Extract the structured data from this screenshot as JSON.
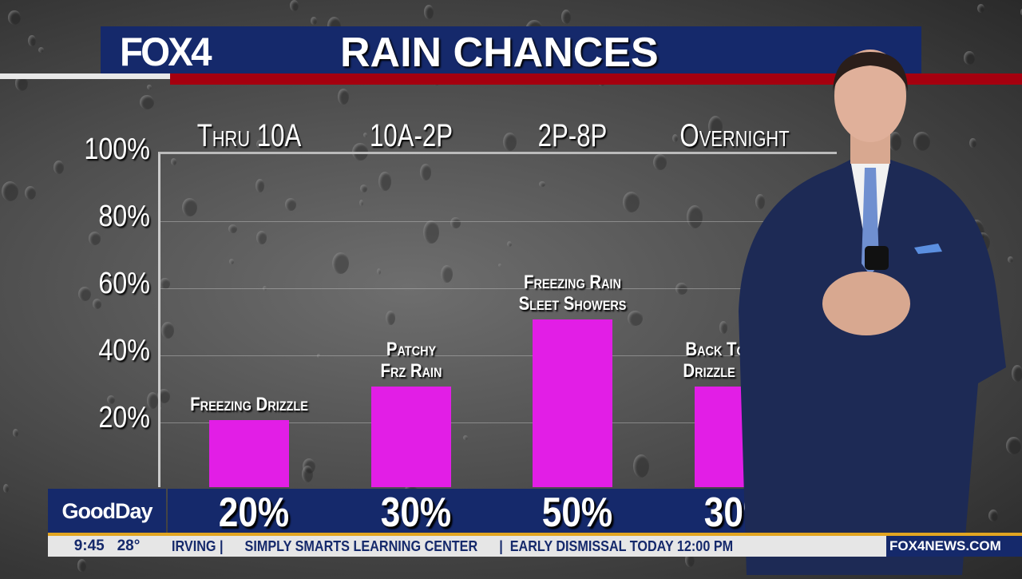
{
  "header": {
    "logo": "FOX4",
    "title": "RAIN CHANCES"
  },
  "chart_data": {
    "type": "bar",
    "title": "RAIN CHANCES",
    "categories": [
      "Thru 10A",
      "10A-2P",
      "2P-8P",
      "Overnight"
    ],
    "values": [
      20,
      30,
      50,
      30
    ],
    "value_labels": [
      "20%",
      "30%",
      "50%",
      "30%"
    ],
    "bar_labels": [
      [
        "Freezing Drizzle"
      ],
      [
        "Patchy",
        "Frz Rain"
      ],
      [
        "Freezing Rain",
        "Sleet Showers"
      ],
      [
        "Back To Patc",
        "Drizzle Until I"
      ]
    ],
    "y_ticks": [
      "100%",
      "80%",
      "60%",
      "40%",
      "20%"
    ],
    "ylim": [
      0,
      100
    ],
    "grid": true,
    "bar_color": "#e21ee6"
  },
  "lower_third": {
    "show": "GoodDay",
    "time": "9:45",
    "temp": "28°",
    "ticker": "IRVING |      SIMPLY SMARTS LEARNING CENTER      |  EARLY DISMISSAL TODAY 12:00 PM",
    "website": "FOX4NEWS.COM"
  },
  "colors": {
    "navy": "#15296b",
    "red": "#a5000f",
    "gold": "#e2a521"
  }
}
